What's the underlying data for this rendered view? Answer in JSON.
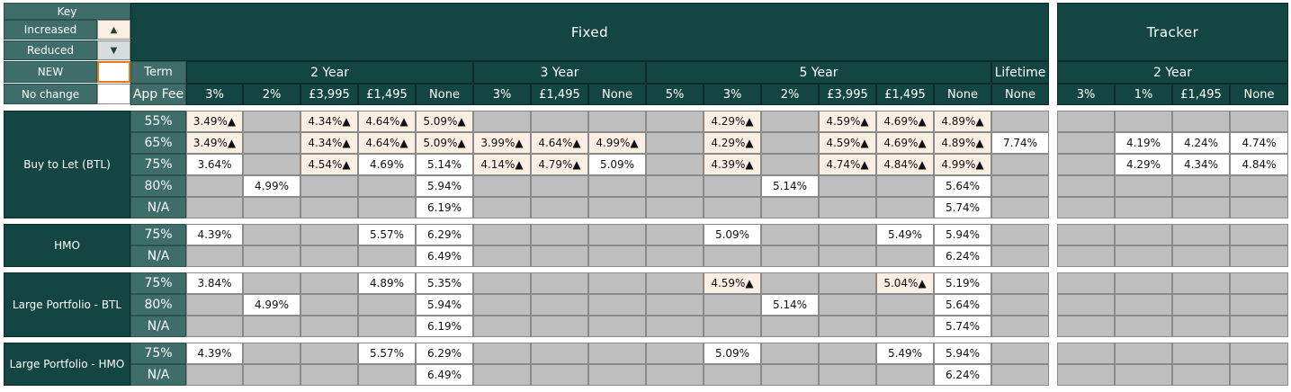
{
  "key": {
    "title": "Key",
    "items": [
      {
        "label": "Increased",
        "symbol": "▲"
      },
      {
        "label": "Reduced",
        "symbol": "▼"
      },
      {
        "label": "NEW",
        "symbol": ""
      },
      {
        "label": "No change",
        "symbol": ""
      }
    ]
  },
  "header": {
    "fixed": "Fixed",
    "tracker": "Tracker",
    "term_label": "Term",
    "app_fee_label": "App Fee",
    "terms": [
      "2 Year",
      "3 Year",
      "5 Year",
      "Lifetime",
      "2 Year"
    ],
    "fees": [
      "3%",
      "2%",
      "£3,995",
      "£1,495",
      "None",
      "3%",
      "£1,495",
      "None",
      "5%",
      "3%",
      "2%",
      "£3,995",
      "£1,495",
      "None",
      "None",
      "3%",
      "1%",
      "£1,495",
      "None"
    ]
  },
  "groups": [
    {
      "name": "Buy to Let (BTL)",
      "rows": [
        {
          "ltv": "55%",
          "cells": [
            "3.49%▲",
            "",
            "4.34%▲",
            "4.64%▲",
            "5.09%▲",
            "",
            "",
            "",
            "",
            "4.29%▲",
            "",
            "4.59%▲",
            "4.69%▲",
            "4.89%▲",
            "",
            "",
            "",
            "",
            ""
          ]
        },
        {
          "ltv": "65%",
          "cells": [
            "3.49%▲",
            "",
            "4.34%▲",
            "4.64%▲",
            "5.09%▲",
            "3.99%▲",
            "4.64%▲",
            "4.99%▲",
            "",
            "4.29%▲",
            "",
            "4.59%▲",
            "4.69%▲",
            "4.89%▲",
            "7.74%",
            "",
            "4.19%",
            "4.24%",
            "4.74%"
          ]
        },
        {
          "ltv": "75%",
          "cells": [
            "3.64%",
            "",
            "4.54%▲",
            "4.69%",
            "5.14%",
            "4.14%▲",
            "4.79%▲",
            "5.09%",
            "",
            "4.39%▲",
            "",
            "4.74%▲",
            "4.84%▲",
            "4.99%▲",
            "",
            "",
            "4.29%",
            "4.34%",
            "4.84%"
          ]
        },
        {
          "ltv": "80%",
          "cells": [
            "",
            "4.99%",
            "",
            "",
            "5.94%",
            "",
            "",
            "",
            "",
            "",
            "5.14%",
            "",
            "",
            "5.64%",
            "",
            "",
            "",
            "",
            ""
          ]
        },
        {
          "ltv": "N/A",
          "cells": [
            "",
            "",
            "",
            "",
            "6.19%",
            "",
            "",
            "",
            "",
            "",
            "",
            "",
            "",
            "5.74%",
            "",
            "",
            "",
            "",
            ""
          ]
        }
      ]
    },
    {
      "name": "HMO",
      "rows": [
        {
          "ltv": "75%",
          "cells": [
            "4.39%",
            "",
            "",
            "5.57%",
            "6.29%",
            "",
            "",
            "",
            "",
            "5.09%",
            "",
            "",
            "5.49%",
            "5.94%",
            "",
            "",
            "",
            "",
            ""
          ]
        },
        {
          "ltv": "N/A",
          "cells": [
            "",
            "",
            "",
            "",
            "6.49%",
            "",
            "",
            "",
            "",
            "",
            "",
            "",
            "",
            "6.24%",
            "",
            "",
            "",
            "",
            ""
          ]
        }
      ]
    },
    {
      "name": "Large Portfolio - BTL",
      "rows": [
        {
          "ltv": "75%",
          "cells": [
            "3.84%",
            "",
            "",
            "4.89%",
            "5.35%",
            "",
            "",
            "",
            "",
            "4.59%▲",
            "",
            "",
            "5.04%▲",
            "5.19%",
            "",
            "",
            "",
            "",
            ""
          ]
        },
        {
          "ltv": "80%",
          "cells": [
            "",
            "4.99%",
            "",
            "",
            "5.94%",
            "",
            "",
            "",
            "",
            "",
            "5.14%",
            "",
            "",
            "5.64%",
            "",
            "",
            "",
            "",
            ""
          ]
        },
        {
          "ltv": "N/A",
          "cells": [
            "",
            "",
            "",
            "",
            "6.19%",
            "",
            "",
            "",
            "",
            "",
            "",
            "",
            "",
            "5.74%",
            "",
            "",
            "",
            "",
            ""
          ]
        }
      ]
    },
    {
      "name": "Large Portfolio - HMO",
      "rows": [
        {
          "ltv": "75%",
          "cells": [
            "4.39%",
            "",
            "",
            "5.57%",
            "6.29%",
            "",
            "",
            "",
            "",
            "5.09%",
            "",
            "",
            "5.49%",
            "5.94%",
            "",
            "",
            "",
            "",
            ""
          ]
        },
        {
          "ltv": "N/A",
          "cells": [
            "",
            "",
            "",
            "",
            "6.49%",
            "",
            "",
            "",
            "",
            "",
            "",
            "",
            "",
            "6.24%",
            "",
            "",
            "",
            "",
            ""
          ]
        }
      ]
    }
  ],
  "colors": {
    "header_bg": "#134642",
    "ltv_bg": "#3e6d6a",
    "empty_cell": "#bfbfbf",
    "increased_cell": "#fbeee3",
    "reduced_cell": "#d7dcdc",
    "new_border": "#e07a1f"
  }
}
